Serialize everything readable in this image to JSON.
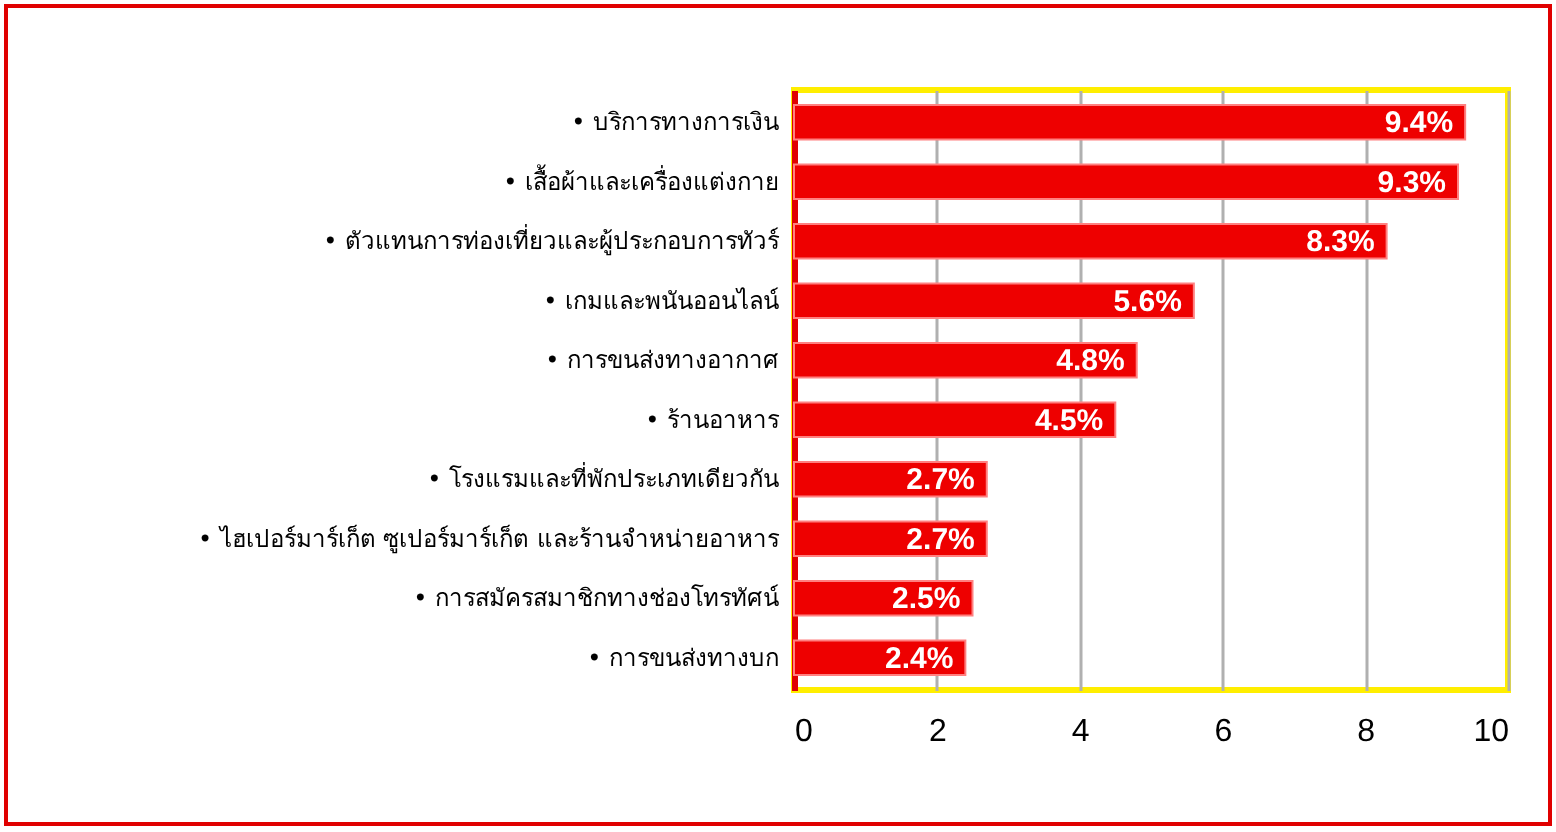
{
  "chart_data": {
    "type": "bar",
    "orientation": "horizontal",
    "categories": [
      "• บริการทางการเงิน",
      "• เสื้อผ้าและเครื่องแต่งกาย",
      "• ตัวแทนการท่องเที่ยวและผู้ประกอบการทัวร์",
      "• เกมและพนันออนไลน์",
      "• การขนส่งทางอากาศ",
      "• ร้านอาหาร",
      "• โรงแรมและที่พักประเภทเดียวกัน",
      "• ไฮเปอร์มาร์เก็ต ซูเปอร์มาร์เก็ต และร้านจำหน่ายอาหาร",
      "• การสมัครสมาชิกทางช่องโทรทัศน์",
      "• การขนส่งทางบก"
    ],
    "values": [
      9.4,
      9.3,
      8.3,
      5.6,
      4.8,
      4.5,
      2.7,
      2.7,
      2.5,
      2.4
    ],
    "value_labels": [
      "9.4%",
      "9.3%",
      "8.3%",
      "5.6%",
      "4.8%",
      "4.5%",
      "2.7%",
      "2.7%",
      "2.5%",
      "2.4%"
    ],
    "color": "#ee0000",
    "xlim": [
      0,
      10
    ],
    "xticks": [
      0,
      2,
      4,
      6,
      8,
      10
    ],
    "grid": "x"
  }
}
